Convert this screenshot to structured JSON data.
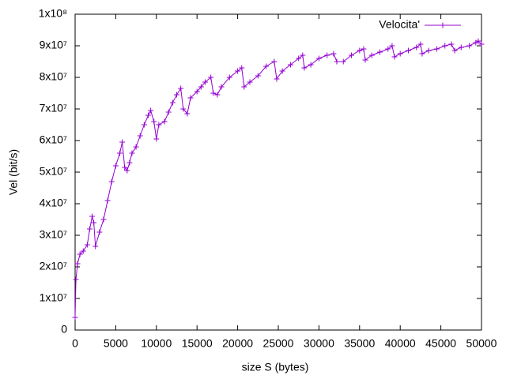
{
  "chart_data": {
    "type": "line",
    "xlabel": "size S (bytes)",
    "ylabel": "Vel (bit/s)",
    "x": [
      0,
      100,
      300,
      600,
      1000,
      1500,
      1800,
      2100,
      2300,
      2500,
      3000,
      3500,
      4000,
      4500,
      5000,
      5500,
      5800,
      6100,
      6400,
      6700,
      7000,
      7500,
      8000,
      8500,
      9000,
      9300,
      9700,
      10000,
      10300,
      11000,
      11500,
      12000,
      12500,
      13000,
      13300,
      13800,
      14200,
      15000,
      15500,
      16000,
      16700,
      17000,
      17500,
      18000,
      19000,
      20000,
      20500,
      20800,
      21500,
      22500,
      23500,
      24500,
      24800,
      25500,
      26500,
      27500,
      28000,
      28200,
      29000,
      30000,
      31000,
      31800,
      32200,
      33000,
      34000,
      35000,
      35500,
      35700,
      36500,
      37500,
      38500,
      39000,
      39300,
      40000,
      41000,
      42000,
      42500,
      42700,
      43500,
      44500,
      45500,
      46300,
      46700,
      47500,
      48500,
      49300,
      49600,
      50000
    ],
    "series": [
      {
        "name": "Velocita'",
        "color": "#9400d3",
        "values": [
          4000000,
          16000000,
          21000000,
          24000000,
          25000000,
          27000000,
          32000000,
          36000000,
          34000000,
          26500000,
          31000000,
          35000000,
          41000000,
          47000000,
          52000000,
          56000000,
          59500000,
          51500000,
          50500000,
          53000000,
          56000000,
          58000000,
          61500000,
          65000000,
          68000000,
          69500000,
          66000000,
          60500000,
          65000000,
          66000000,
          69000000,
          72000000,
          74500000,
          76500000,
          70000000,
          68500000,
          73500000,
          75500000,
          77000000,
          78500000,
          80000000,
          75000000,
          74500000,
          77000000,
          80000000,
          82000000,
          83000000,
          77000000,
          78500000,
          80500000,
          83500000,
          85000000,
          79500000,
          82000000,
          84000000,
          86000000,
          87000000,
          83000000,
          84000000,
          86000000,
          87000000,
          87500000,
          85000000,
          85000000,
          87000000,
          88500000,
          89000000,
          85500000,
          87000000,
          88000000,
          89000000,
          90000000,
          86500000,
          87500000,
          88500000,
          89500000,
          90500000,
          87500000,
          88500000,
          89000000,
          90000000,
          90500000,
          88500000,
          89500000,
          90000000,
          91000000,
          91500000,
          90500000
        ]
      }
    ],
    "xlim": [
      0,
      50000
    ],
    "xticks": [
      0,
      5000,
      10000,
      15000,
      20000,
      25000,
      30000,
      35000,
      40000,
      45000,
      50000
    ],
    "ylim": [
      0,
      100000000
    ],
    "yticks": [
      0,
      {
        "value": 10000000,
        "label": "1x10⁷"
      },
      {
        "value": 20000000,
        "label": "2x10⁷"
      },
      {
        "value": 30000000,
        "label": "3x10⁷"
      },
      {
        "value": 40000000,
        "label": "4x10⁷"
      },
      {
        "value": 50000000,
        "label": "5x10⁷"
      },
      {
        "value": 60000000,
        "label": "6x10⁷"
      },
      {
        "value": 70000000,
        "label": "7x10⁷"
      },
      {
        "value": 80000000,
        "label": "8x10⁷"
      },
      {
        "value": 90000000,
        "label": "9x10⁷"
      },
      {
        "value": 100000000,
        "label": "1x10⁸"
      }
    ],
    "legend": "top-right",
    "grid": false
  }
}
